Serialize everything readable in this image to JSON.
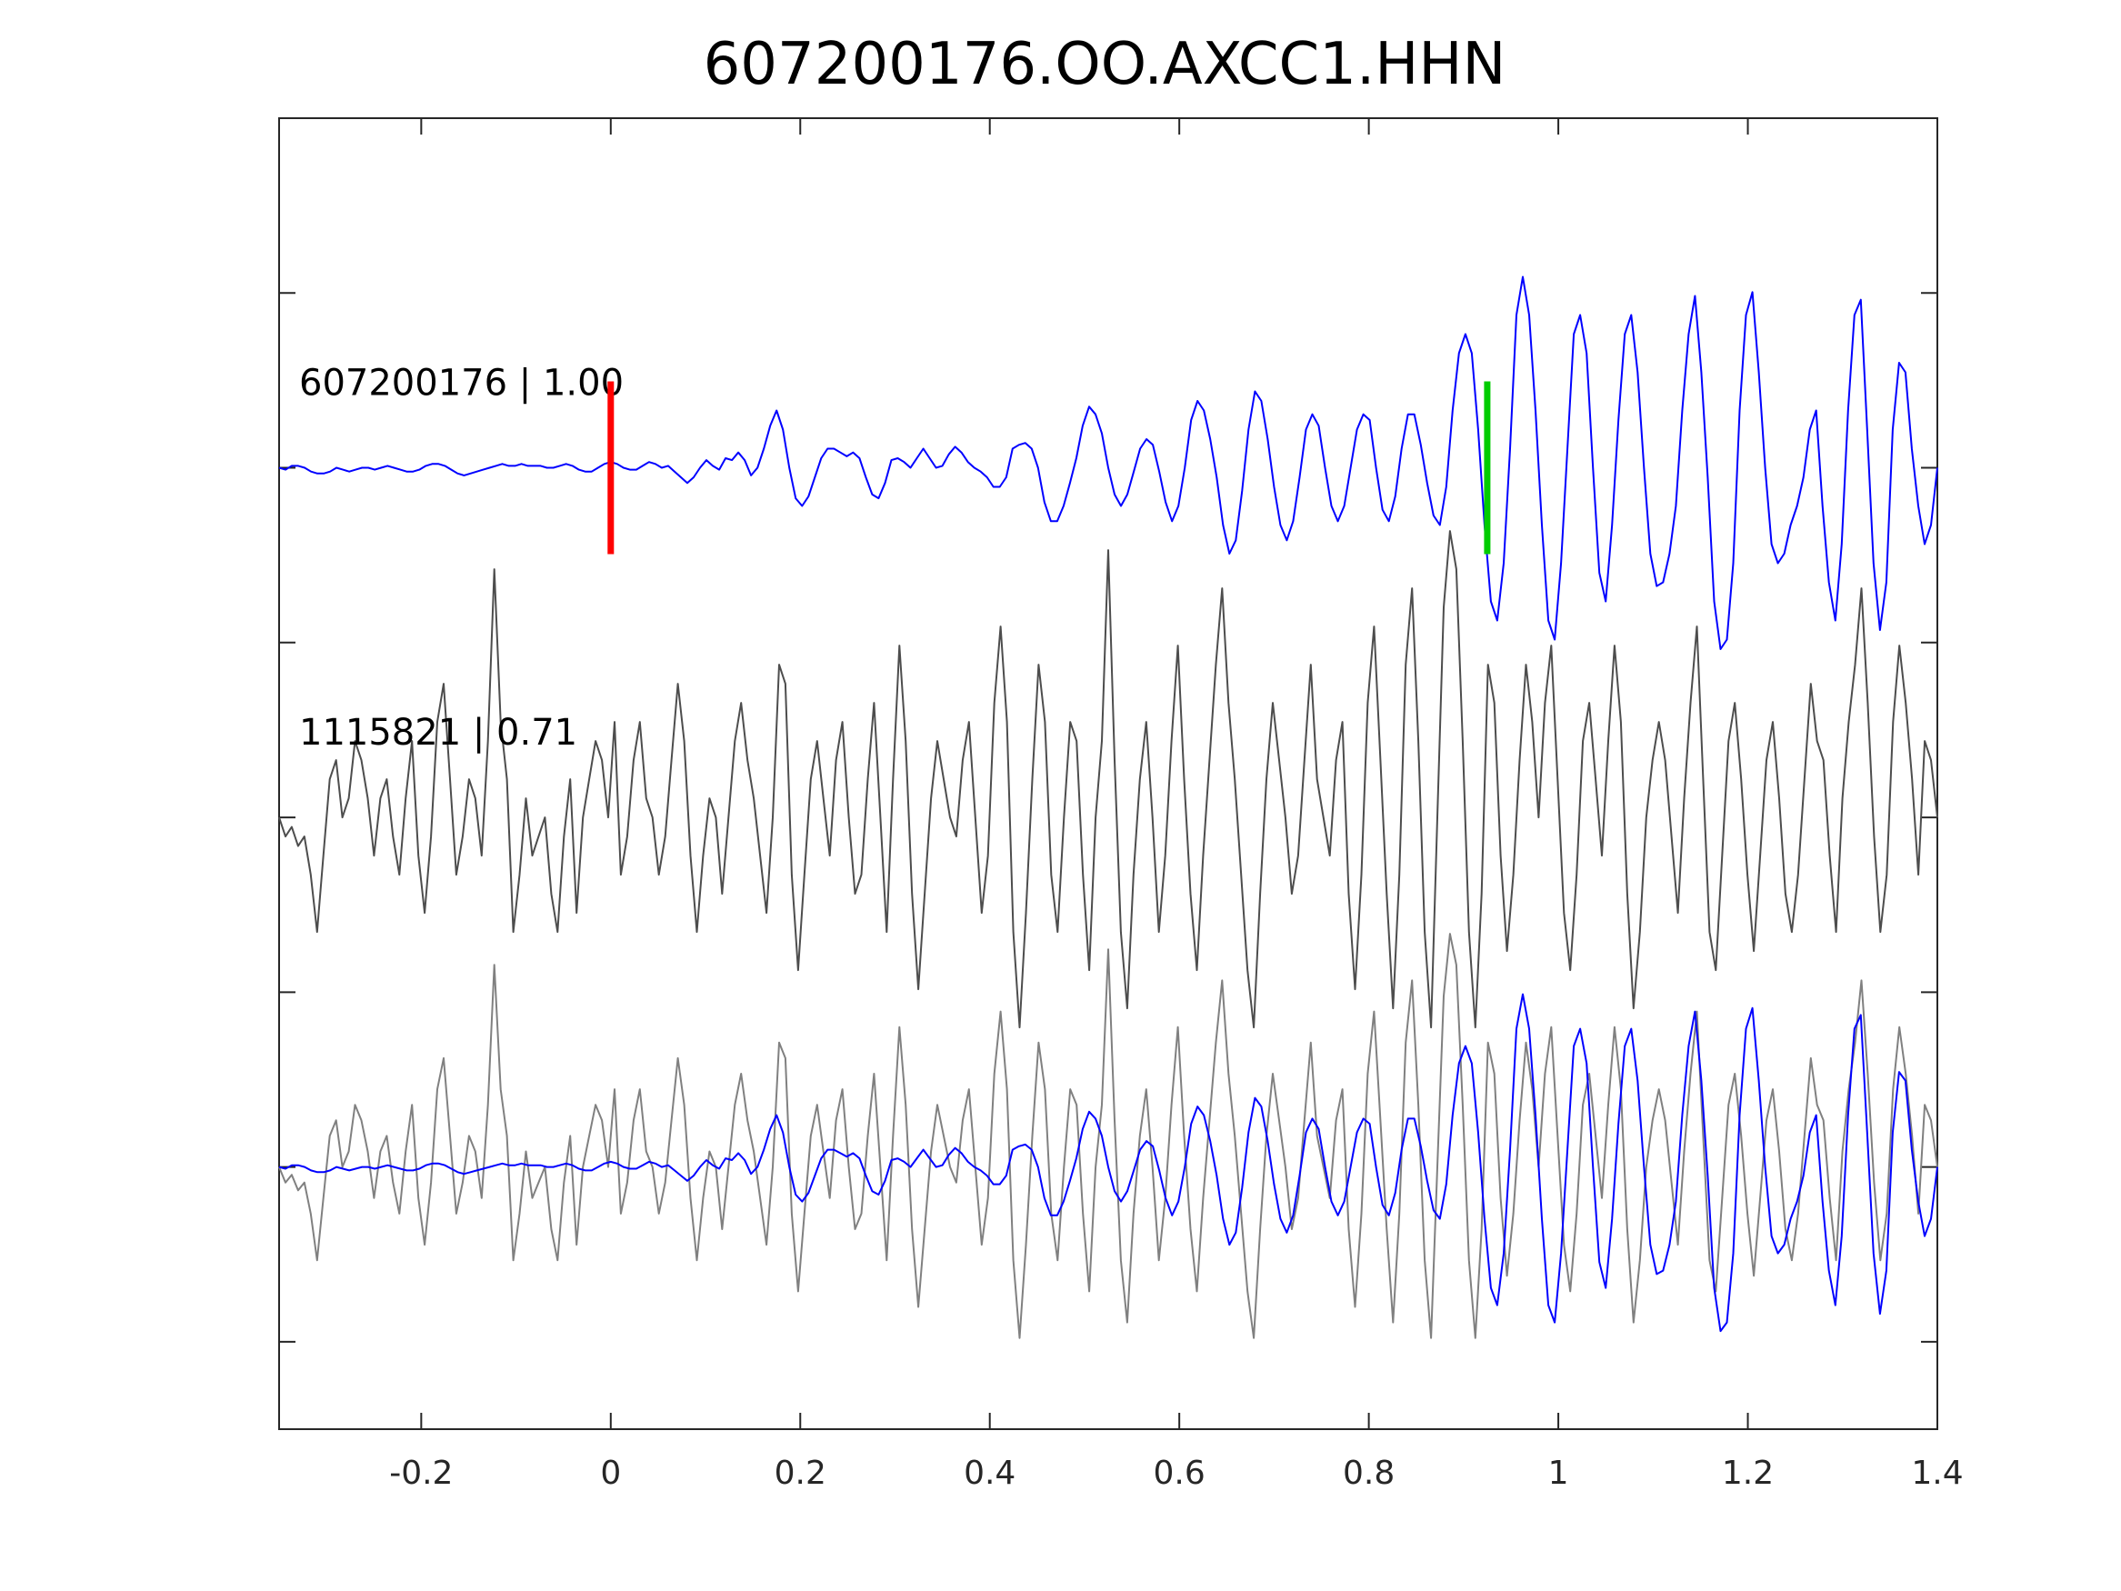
{
  "chart_data": {
    "type": "line",
    "title": "607200176.OO.AXCC1.HHN",
    "xlabel": "",
    "ylabel": "",
    "xlim": [
      -0.35,
      1.4
    ],
    "x_ticks": [
      -0.2,
      0,
      0.2,
      0.4,
      0.6,
      0.8,
      1,
      1.2,
      1.4
    ],
    "x_tick_labels": [
      "-0.2",
      "0",
      "0.2",
      "0.4",
      "0.6",
      "0.8",
      "1",
      "1.2",
      "1.4"
    ],
    "y_ticks_unlabeled": 7,
    "grid": false,
    "colors": {
      "template_trace": "#0000ff",
      "match_trace": "#4d4d4d",
      "overlay_trace": "#808080",
      "p_pick": "#ff0000",
      "s_pick": "#00cc00",
      "axes": "#262626"
    },
    "traces": [
      {
        "label": "607200176 | 1.00",
        "color": "#0000ff",
        "samples_amplitude_normalized": [
          0.0,
          -0.01,
          0.01,
          0.01,
          0.0,
          -0.02,
          -0.03,
          -0.03,
          -0.02,
          0.0,
          -0.01,
          -0.02,
          -0.01,
          0.0,
          0.0,
          -0.01,
          0.0,
          0.01,
          0.0,
          -0.01,
          -0.02,
          -0.02,
          -0.01,
          0.01,
          0.02,
          0.02,
          0.01,
          -0.01,
          -0.03,
          -0.04,
          -0.03,
          -0.02,
          -0.01,
          0.0,
          0.01,
          0.02,
          0.01,
          0.01,
          0.02,
          0.01,
          0.01,
          0.01,
          0.0,
          0.0,
          0.01,
          0.02,
          0.01,
          -0.01,
          -0.02,
          -0.02,
          0.0,
          0.02,
          0.03,
          0.02,
          0.0,
          -0.01,
          -0.01,
          0.01,
          0.03,
          0.02,
          0.0,
          0.01,
          -0.02,
          -0.05,
          -0.08,
          -0.05,
          0.0,
          0.04,
          0.01,
          -0.01,
          0.05,
          0.04,
          0.08,
          0.04,
          -0.04,
          0.0,
          0.1,
          0.22,
          0.3,
          0.2,
          0.0,
          -0.16,
          -0.2,
          -0.15,
          -0.05,
          0.05,
          0.1,
          0.1,
          0.08,
          0.06,
          0.08,
          0.05,
          -0.05,
          -0.14,
          -0.16,
          -0.08,
          0.04,
          0.05,
          0.03,
          0.0,
          0.05,
          0.1,
          0.05,
          0.0,
          0.01,
          0.07,
          0.11,
          0.08,
          0.03,
          0.0,
          -0.02,
          -0.05,
          -0.1,
          -0.1,
          -0.05,
          0.1,
          0.12,
          0.13,
          0.1,
          0.0,
          -0.18,
          -0.28,
          -0.28,
          -0.2,
          -0.08,
          0.05,
          0.22,
          0.32,
          0.28,
          0.18,
          0.0,
          -0.14,
          -0.2,
          -0.14,
          -0.02,
          0.1,
          0.15,
          0.12,
          -0.02,
          -0.18,
          -0.28,
          -0.2,
          0.0,
          0.25,
          0.35,
          0.3,
          0.15,
          -0.05,
          -0.3,
          -0.45,
          -0.38,
          -0.12,
          0.2,
          0.4,
          0.35,
          0.15,
          -0.1,
          -0.3,
          -0.38,
          -0.28,
          -0.05,
          0.2,
          0.28,
          0.22,
          0.0,
          -0.2,
          -0.28,
          -0.2,
          0.0,
          0.2,
          0.28,
          0.25,
          0.0,
          -0.22,
          -0.28,
          -0.15,
          0.1,
          0.28,
          0.28,
          0.12,
          -0.08,
          -0.25,
          -0.3,
          -0.1,
          0.3,
          0.6,
          0.7,
          0.6,
          0.2,
          -0.3,
          -0.7,
          -0.8,
          -0.5,
          0.1,
          0.8,
          1.0,
          0.8,
          0.3,
          -0.3,
          -0.8,
          -0.9,
          -0.5,
          0.1,
          0.7,
          0.8,
          0.6,
          0.0,
          -0.55,
          -0.7,
          -0.3,
          0.25,
          0.7,
          0.8,
          0.5,
          0.0,
          -0.45,
          -0.62,
          -0.6,
          -0.45,
          -0.2,
          0.3,
          0.7,
          0.9,
          0.5,
          -0.05,
          -0.7,
          -0.95,
          -0.9,
          -0.5,
          0.3,
          0.8,
          0.92,
          0.5,
          0.0,
          -0.4,
          -0.5,
          -0.45,
          -0.3,
          -0.2,
          -0.05,
          0.2,
          0.3,
          -0.2,
          -0.6,
          -0.8,
          -0.4,
          0.3,
          0.8,
          0.88,
          0.2,
          -0.5,
          -0.85,
          -0.6,
          0.2,
          0.55,
          0.5,
          0.1,
          -0.2,
          -0.4,
          -0.3,
          0.0
        ]
      },
      {
        "label": "1115821 | 0.71",
        "color": "#4d4d4d",
        "samples_amplitude_normalized": [
          0.0,
          -0.1,
          -0.05,
          -0.15,
          -0.1,
          -0.3,
          -0.6,
          -0.2,
          0.2,
          0.3,
          0.0,
          0.1,
          0.4,
          0.3,
          0.1,
          -0.2,
          0.1,
          0.2,
          -0.1,
          -0.3,
          0.1,
          0.4,
          -0.2,
          -0.5,
          -0.1,
          0.5,
          0.7,
          0.2,
          -0.3,
          -0.1,
          0.2,
          0.1,
          -0.2,
          0.4,
          1.3,
          0.5,
          0.2,
          -0.6,
          -0.3,
          0.1,
          -0.2,
          -0.1,
          0.0,
          -0.4,
          -0.6,
          -0.1,
          0.2,
          -0.5,
          0.0,
          0.2,
          0.4,
          0.3,
          0.0,
          0.5,
          -0.3,
          -0.1,
          0.3,
          0.5,
          0.1,
          0.0,
          -0.3,
          -0.1,
          0.3,
          0.7,
          0.4,
          -0.2,
          -0.6,
          -0.2,
          0.1,
          0.0,
          -0.4,
          0.0,
          0.4,
          0.6,
          0.3,
          0.1,
          -0.2,
          -0.5,
          0.0,
          0.8,
          0.7,
          -0.3,
          -0.8,
          -0.3,
          0.2,
          0.4,
          0.1,
          -0.2,
          0.3,
          0.5,
          0.0,
          -0.4,
          -0.3,
          0.2,
          0.6,
          0.0,
          -0.6,
          0.2,
          0.9,
          0.4,
          -0.4,
          -0.9,
          -0.4,
          0.1,
          0.4,
          0.2,
          0.0,
          -0.1,
          0.3,
          0.5,
          0.0,
          -0.5,
          -0.2,
          0.6,
          1.0,
          0.5,
          -0.6,
          -1.1,
          -0.5,
          0.2,
          0.8,
          0.5,
          -0.3,
          -0.6,
          0.0,
          0.5,
          0.4,
          -0.3,
          -0.8,
          0.0,
          0.4,
          1.4,
          0.3,
          -0.6,
          -1.0,
          -0.3,
          0.2,
          0.5,
          0.0,
          -0.6,
          -0.2,
          0.4,
          0.9,
          0.2,
          -0.4,
          -0.8,
          -0.2,
          0.3,
          0.8,
          1.2,
          0.6,
          0.2,
          -0.3,
          -0.8,
          -1.1,
          -0.4,
          0.2,
          0.6,
          0.3,
          0.0,
          -0.4,
          -0.2,
          0.3,
          0.8,
          0.2,
          0.0,
          -0.2,
          0.3,
          0.5,
          -0.4,
          -0.9,
          -0.3,
          0.6,
          1.0,
          0.3,
          -0.4,
          -1.0,
          -0.3,
          0.8,
          1.2,
          0.4,
          -0.6,
          -1.1,
          0.0,
          1.1,
          1.5,
          1.3,
          0.4,
          -0.6,
          -1.1,
          -0.4,
          0.8,
          0.6,
          -0.2,
          -0.7,
          -0.3,
          0.3,
          0.8,
          0.5,
          0.0,
          0.6,
          0.9,
          0.2,
          -0.5,
          -0.8,
          -0.3,
          0.4,
          0.6,
          0.2,
          -0.2,
          0.4,
          0.9,
          0.5,
          -0.4,
          -1.0,
          -0.6,
          0.0,
          0.3,
          0.5,
          0.3,
          -0.1,
          -0.5,
          0.1,
          0.6,
          1.0,
          0.2,
          -0.6,
          -0.8,
          -0.2,
          0.4,
          0.6,
          0.2,
          -0.3,
          -0.7,
          -0.2,
          0.3,
          0.5,
          0.1,
          -0.4,
          -0.6,
          -0.3,
          0.2,
          0.7,
          0.4,
          0.3,
          -0.2,
          -0.6,
          0.1,
          0.5,
          0.8,
          1.2,
          0.6,
          -0.1,
          -0.6,
          -0.3,
          0.5,
          0.9,
          0.6,
          0.2,
          -0.3,
          0.4,
          0.3,
          0.0
        ]
      },
      {
        "label": "",
        "role": "overlay",
        "traces_overlaid": [
          "607200176 | 1.00",
          "1115821 | 0.71"
        ]
      }
    ],
    "picks": [
      {
        "x": 0.0,
        "color": "#ff0000",
        "trace": 0
      },
      {
        "x": 0.925,
        "color": "#00cc00",
        "trace": 0
      }
    ]
  }
}
